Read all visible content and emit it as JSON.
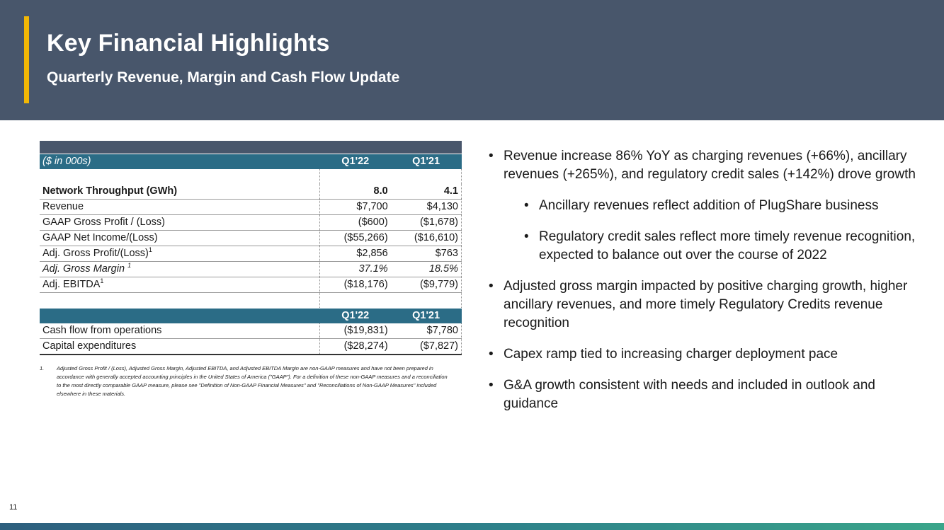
{
  "header": {
    "title": "Key Financial Highlights",
    "subtitle": "Quarterly Revenue, Margin and Cash Flow Update",
    "colors": {
      "background": "#48566b",
      "accent": "#f2b705",
      "table_header": "#2b6c86"
    }
  },
  "table": {
    "unit_label": "($ in 000s)",
    "col1": "Q1'22",
    "col2": "Q1'21",
    "rows": [
      {
        "label": "Network Throughput (GWh)",
        "sup": "",
        "v1": "8.0",
        "v2": "4.1"
      },
      {
        "label": "Revenue",
        "sup": "",
        "v1": "$7,700",
        "v2": "$4,130"
      },
      {
        "label": "GAAP Gross Profit / (Loss)",
        "sup": "",
        "v1": "($600)",
        "v2": "($1,678)"
      },
      {
        "label": "GAAP Net Income/(Loss)",
        "sup": "",
        "v1": "($55,266)",
        "v2": "($16,610)"
      },
      {
        "label": "Adj. Gross Profit/(Loss)",
        "sup": "1",
        "v1": "$2,856",
        "v2": "$763"
      },
      {
        "label": "Adj. Gross Margin ",
        "sup": "1",
        "v1": "37.1%",
        "v2": "18.5%"
      },
      {
        "label": "Adj. EBITDA",
        "sup": "1",
        "v1": "($18,176)",
        "v2": "($9,779)"
      }
    ],
    "cash_col1": "Q1'22",
    "cash_col2": "Q1'21",
    "cash_rows": [
      {
        "label": "Cash flow from operations",
        "v1": "($19,831)",
        "v2": "$7,780"
      },
      {
        "label": "Capital expenditures",
        "v1": "($28,274)",
        "v2": "($7,827)"
      }
    ]
  },
  "footnote": {
    "number": "1.",
    "text": "Adjusted Gross Profit / (Loss), Adjusted Gross Margin, Adjusted EBITDA, and Adjusted EBITDA Margin are non-GAAP measures and have not been prepared in accordance with generally accepted accounting principles in the United States of America (\"GAAP\"). For a definition of these non-GAAP measures and a reconciliation to the most directly comparable GAAP measure, please see \"Definition of Non-GAAP Financial Measures\" and \"Reconciliations of Non-GAAP Measures\" included elsewhere in these materials."
  },
  "bullets": {
    "symbol": "•",
    "b1": "Revenue increase 86% YoY as charging revenues (+66%), ancillary revenues (+265%), and regulatory credit sales (+142%) drove growth",
    "b1a": "Ancillary revenues reflect addition of PlugShare business",
    "b1b": "Regulatory credit sales reflect more timely revenue recognition, expected to balance out over the course of 2022",
    "b2": "Adjusted gross margin impacted by positive charging growth, higher ancillary revenues, and more timely Regulatory Credits revenue recognition",
    "b3": "Capex ramp tied to increasing charger deployment pace",
    "b4": "G&A growth consistent with needs and included in outlook and guidance"
  },
  "page_number": "11"
}
